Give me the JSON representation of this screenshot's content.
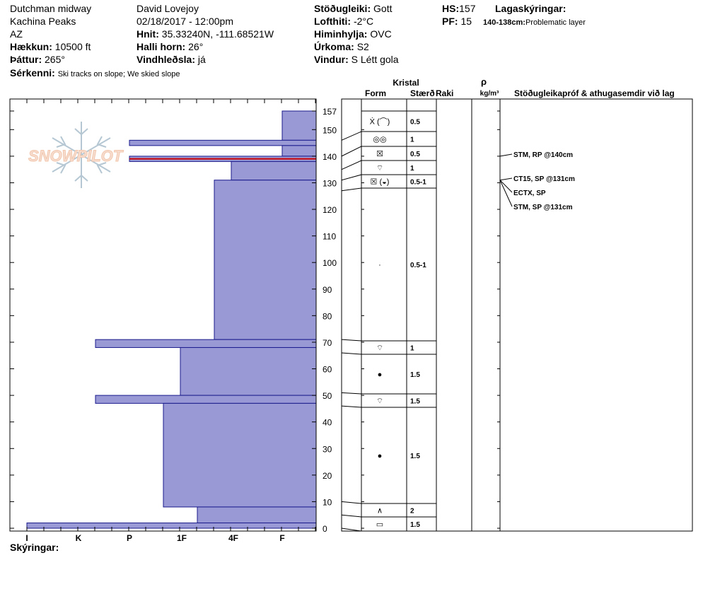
{
  "header": {
    "location": "Dutchman midway",
    "range": "Kachina Peaks",
    "state": "AZ",
    "elevation_label": "Hækkun:",
    "elevation_value": "10500 ft",
    "aspect_label": "Þáttur:",
    "aspect_value": "265°",
    "observer": "David Lovejoy",
    "datetime": "02/18/2017 - 12:00pm",
    "coords_label": "Hnit:",
    "coords_value": "35.33240N, -111.68521W",
    "slope_label": "Halli horn:",
    "slope_value": "26°",
    "wind_loading_label": "Vindhleðsla:",
    "wind_loading_value": "já",
    "stability_label": "Stöðugleiki:",
    "stability_value": "Gott",
    "air_temp_label": "Lofthiti:",
    "air_temp_value": "-2°C",
    "sky_label": "Himinhylja:",
    "sky_value": "OVC",
    "precip_label": "Úrkoma:",
    "precip_value": "S2",
    "wind_label": "Vindur:",
    "wind_value": "S Létt gola",
    "hs_label": "HS:",
    "hs_value": "157",
    "pf_label": "PF:",
    "pf_value": "15",
    "layer_notes_label": "Lagaskýringar:",
    "layer_note_range": "140-138cm:",
    "layer_note_text": "Problematic layer",
    "features_label": "Sérkenni:",
    "features_value": "Ski tracks on slope; We skied slope",
    "legend_label": "Skýringar:"
  },
  "logo": {
    "text": "SNOWPILOT"
  },
  "columns": {
    "crystal": "Kristal",
    "form": "Form",
    "size": "Stærð",
    "moisture": "Raki",
    "rho": "ρ",
    "density_unit": "kg/m³",
    "tests": "Stöðugleikapróf & athugasemdir við lag"
  },
  "chart_data": {
    "type": "bar",
    "orientation": "horizontal",
    "y_axis": {
      "label": "",
      "min": 0,
      "max": 157,
      "ticks": [
        0,
        10,
        20,
        30,
        40,
        50,
        60,
        70,
        80,
        90,
        100,
        110,
        120,
        130,
        140,
        150,
        157
      ]
    },
    "x_axis": {
      "label": "",
      "categories": [
        "I",
        "K",
        "P",
        "1F",
        "4F",
        "F"
      ],
      "direction": "right-to-left"
    },
    "hardness_layers": [
      {
        "bottom": 146,
        "top": 157,
        "hardness": "F"
      },
      {
        "bottom": 144,
        "top": 146,
        "hardness": "P"
      },
      {
        "bottom": 140,
        "top": 144,
        "hardness": "F"
      },
      {
        "bottom": 138,
        "top": 140,
        "hardness": "P"
      },
      {
        "bottom": 131,
        "top": 138,
        "hardness": "4F"
      },
      {
        "bottom": 71,
        "top": 131,
        "hardness": "4F-"
      },
      {
        "bottom": 68,
        "top": 71,
        "hardness": "K-P"
      },
      {
        "bottom": 50,
        "top": 68,
        "hardness": "1F"
      },
      {
        "bottom": 47,
        "top": 50,
        "hardness": "K-P"
      },
      {
        "bottom": 8,
        "top": 47,
        "hardness": "1F+"
      },
      {
        "bottom": 2,
        "top": 8,
        "hardness": "4F+"
      },
      {
        "bottom": 0,
        "top": 2,
        "hardness": "I"
      }
    ],
    "problem_layer": {
      "bottom": 138,
      "top": 140,
      "color": "#cc0000"
    },
    "bar_color": "#9999d6",
    "bar_stroke": "#1a1a8c",
    "crystal_rows": [
      {
        "bottom": 146,
        "top": 157,
        "form": "Ẋ (⌒)",
        "size": "0.5"
      },
      {
        "bottom": 140,
        "top": 146,
        "form": "◎◎",
        "size": "1"
      },
      {
        "bottom": 135,
        "top": 140,
        "form": "☒",
        "size": "0.5"
      },
      {
        "bottom": 131,
        "top": 135,
        "form": "⌔",
        "size": "1"
      },
      {
        "bottom": 127,
        "top": 131,
        "form": "☒ (◒)",
        "size": "0.5-1"
      },
      {
        "bottom": 71,
        "top": 127,
        "form": "·",
        "size": "0.5-1"
      },
      {
        "bottom": 66,
        "top": 71,
        "form": "⌔",
        "size": "1"
      },
      {
        "bottom": 51,
        "top": 66,
        "form": "●",
        "size": "1.5"
      },
      {
        "bottom": 46,
        "top": 51,
        "form": "⌔",
        "size": "1.5"
      },
      {
        "bottom": 10,
        "top": 46,
        "form": "●",
        "size": "1.5"
      },
      {
        "bottom": 5,
        "top": 10,
        "form": "∧",
        "size": "2"
      },
      {
        "bottom": 0,
        "top": 5,
        "form": "▭",
        "size": "1.5"
      }
    ],
    "tests": [
      {
        "text": "STM, RP @140cm",
        "depth": 140
      },
      {
        "text": "CT15, SP @131cm",
        "depth": 131
      },
      {
        "text": "ECTX, SP",
        "depth": 131
      },
      {
        "text": "STM, SP @131cm",
        "depth": 131
      }
    ]
  }
}
